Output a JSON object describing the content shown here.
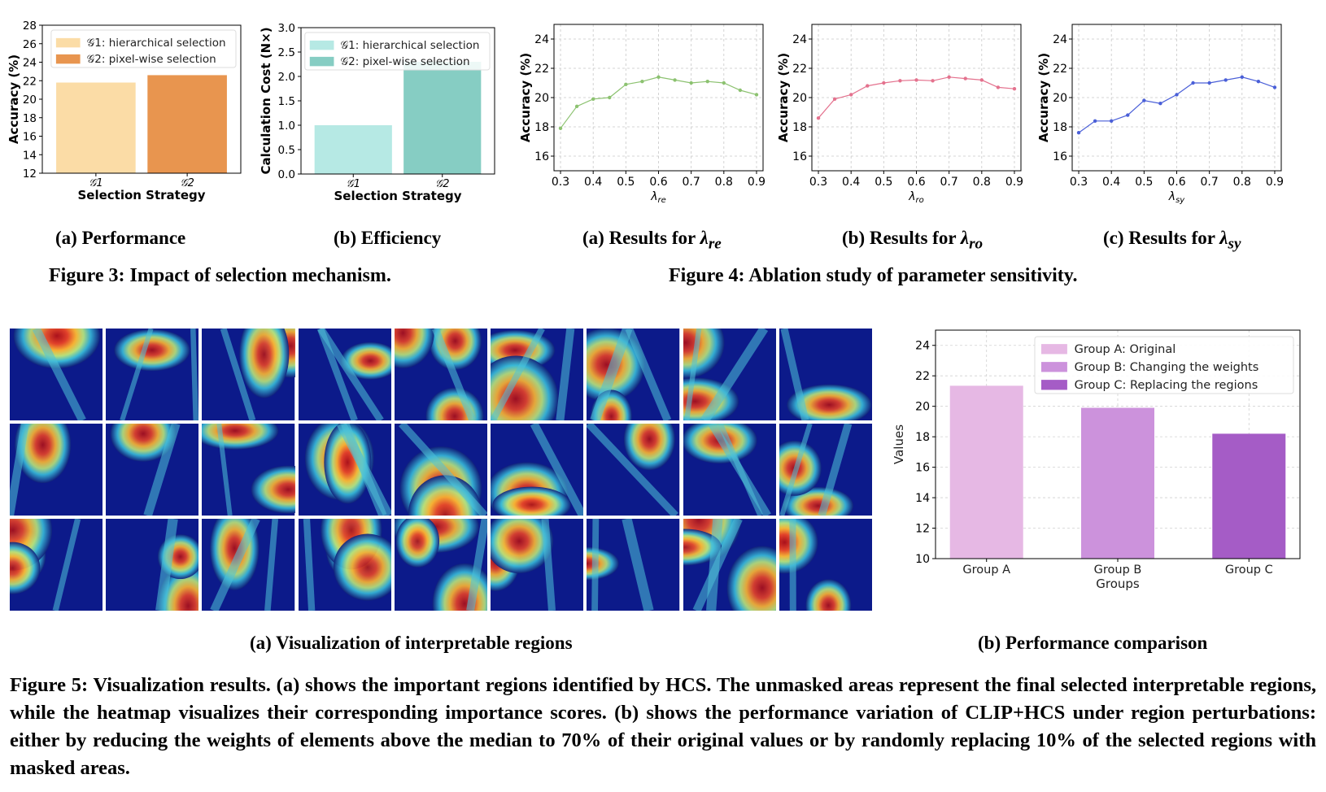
{
  "fig3": {
    "caption": "Figure 3: Impact of selection mechanism.",
    "sub_a": "(a) Performance",
    "sub_b": "(b) Efficiency"
  },
  "fig4": {
    "caption": "Figure 4: Ablation study of parameter sensitivity.",
    "sub_a_prefix": "(a) Results for ",
    "sub_b_prefix": "(b) Results for ",
    "sub_c_prefix": "(c) Results for ",
    "sub_a_sym": "λ",
    "sub_a_sub": "re",
    "sub_b_sym": "λ",
    "sub_b_sub": "ro",
    "sub_c_sym": "λ",
    "sub_c_sub": "sy"
  },
  "fig5": {
    "sub_a": "(a) Visualization of interpretable regions",
    "sub_b": "(b) Performance comparison",
    "caption": "Figure 5: Visualization results. (a) shows the important regions identified by HCS. The unmasked areas represent the final selected interpretable regions, while the heatmap visualizes their corresponding importance scores. (b) shows the performance variation of CLIP+HCS under region perturbations: either by reducing the weights of elements above the median to 70% of their original values or by randomly replacing 10% of the selected regions with masked areas.",
    "tile_count": 27
  },
  "chart_data": [
    {
      "id": "fig3a",
      "type": "bar",
      "categories": [
        "𝒢1",
        "𝒢2"
      ],
      "values": [
        21.8,
        22.6
      ],
      "colors": [
        "#fbdca6",
        "#e8954f"
      ],
      "legend": [
        "𝒢1: hierarchical selection",
        "𝒢2: pixel-wise selection"
      ],
      "legend_position": "top-right",
      "xlabel": "Selection Strategy",
      "ylabel": "Accuracy (%)",
      "ylim": [
        12,
        28
      ],
      "yticks": [
        12,
        14,
        16,
        18,
        20,
        22,
        24,
        26,
        28
      ],
      "grid": false
    },
    {
      "id": "fig3b",
      "type": "bar",
      "categories": [
        "𝒢1",
        "𝒢2"
      ],
      "values": [
        1.0,
        2.3
      ],
      "colors": [
        "#b6e9e4",
        "#86cdc3"
      ],
      "legend": [
        "𝒢1: hierarchical selection",
        "𝒢2: pixel-wise selection"
      ],
      "legend_position": "top-right",
      "xlabel": "Selection Strategy",
      "ylabel": "Calculation Cost (N×)",
      "ylim": [
        0,
        3.0
      ],
      "yticks": [
        "0.0",
        "0.5",
        "1.0",
        "1.5",
        "2.0",
        "2.5",
        "3.0"
      ],
      "grid": false
    },
    {
      "id": "fig4a",
      "type": "line",
      "x": [
        0.3,
        0.35,
        0.4,
        0.45,
        0.5,
        0.55,
        0.6,
        0.65,
        0.7,
        0.75,
        0.8,
        0.85,
        0.9
      ],
      "y": [
        17.9,
        19.4,
        19.9,
        20.0,
        20.9,
        21.1,
        21.4,
        21.2,
        21.0,
        21.1,
        21.0,
        20.5,
        20.2
      ],
      "color": "#8cc270",
      "xlabel": "λre",
      "ylabel": "Accuracy (%)",
      "xlim": [
        0.28,
        0.92
      ],
      "ylim": [
        15,
        25
      ],
      "yticks": [
        16,
        18,
        20,
        22,
        24
      ],
      "xticks": [
        "0.3",
        "0.4",
        "0.5",
        "0.6",
        "0.7",
        "0.8",
        "0.9"
      ],
      "grid": true
    },
    {
      "id": "fig4b",
      "type": "line",
      "x": [
        0.3,
        0.35,
        0.4,
        0.45,
        0.5,
        0.55,
        0.6,
        0.65,
        0.7,
        0.75,
        0.8,
        0.85,
        0.9
      ],
      "y": [
        18.6,
        19.9,
        20.2,
        20.8,
        21.0,
        21.15,
        21.2,
        21.15,
        21.4,
        21.3,
        21.2,
        20.7,
        20.6
      ],
      "color": "#e4728e",
      "xlabel": "λro",
      "ylabel": "Accuracy (%)",
      "xlim": [
        0.28,
        0.92
      ],
      "ylim": [
        15,
        25
      ],
      "yticks": [
        16,
        18,
        20,
        22,
        24
      ],
      "xticks": [
        "0.3",
        "0.4",
        "0.5",
        "0.6",
        "0.7",
        "0.8",
        "0.9"
      ],
      "grid": true
    },
    {
      "id": "fig4c",
      "type": "line",
      "x": [
        0.3,
        0.35,
        0.4,
        0.45,
        0.5,
        0.55,
        0.6,
        0.65,
        0.7,
        0.75,
        0.8,
        0.85,
        0.9
      ],
      "y": [
        17.6,
        18.4,
        18.4,
        18.8,
        19.8,
        19.6,
        20.2,
        21.0,
        21.0,
        21.2,
        21.4,
        21.1,
        20.7
      ],
      "color": "#4a5fd8",
      "xlabel": "λsy",
      "ylabel": "Accuracy (%)",
      "xlim": [
        0.28,
        0.92
      ],
      "ylim": [
        15,
        25
      ],
      "yticks": [
        16,
        18,
        20,
        22,
        24
      ],
      "xticks": [
        "0.3",
        "0.4",
        "0.5",
        "0.6",
        "0.7",
        "0.8",
        "0.9"
      ],
      "grid": true
    },
    {
      "id": "fig5b",
      "type": "bar",
      "categories": [
        "Group A",
        "Group B",
        "Group C"
      ],
      "values": [
        21.35,
        19.9,
        18.2
      ],
      "colors": [
        "#e6b8e4",
        "#cc92dc",
        "#a55cc6"
      ],
      "legend": [
        "Group A: Original",
        "Group B: Changing the weights",
        "Group C: Replacing the regions"
      ],
      "legend_position": "top-right",
      "xlabel": "Groups",
      "ylabel": "Values",
      "ylim": [
        10,
        25
      ],
      "yticks": [
        10,
        12,
        14,
        16,
        18,
        20,
        22,
        24
      ],
      "grid": true
    }
  ]
}
